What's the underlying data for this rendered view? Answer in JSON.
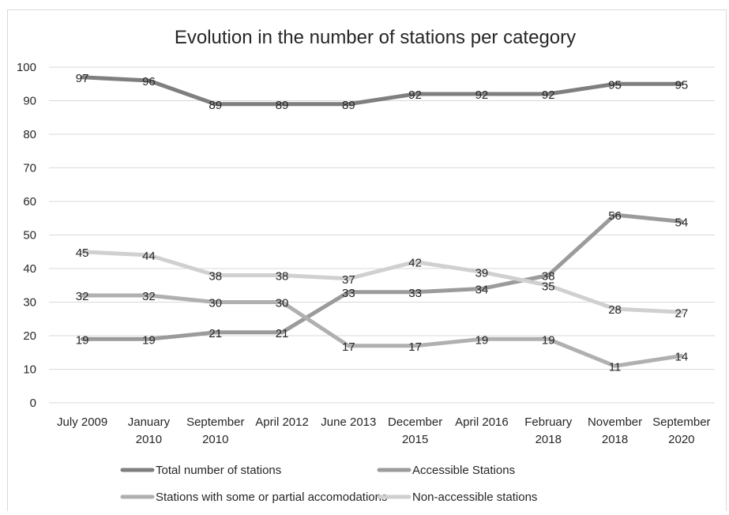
{
  "chart_data": {
    "type": "line",
    "title": "Evolution in the number of stations per category",
    "xlabel": "",
    "ylabel": "",
    "ylim": [
      0,
      100
    ],
    "yticks": [
      "0",
      "10",
      "20",
      "30",
      "40",
      "50",
      "60",
      "70",
      "80",
      "90",
      "100"
    ],
    "grid": true,
    "legend_position": "bottom",
    "categories": [
      [
        "July 2009"
      ],
      [
        "January",
        "2010"
      ],
      [
        "September",
        "2010"
      ],
      [
        "April 2012"
      ],
      [
        "June 2013"
      ],
      [
        "December",
        "2015"
      ],
      [
        "April 2016"
      ],
      [
        "February",
        "2018"
      ],
      [
        "November",
        "2018"
      ],
      [
        "September",
        "2020"
      ]
    ],
    "series": [
      {
        "name": "Total number of stations",
        "color": "#7f7f7f",
        "values": [
          97,
          96,
          89,
          89,
          89,
          92,
          92,
          92,
          95,
          95
        ]
      },
      {
        "name": "Accessible Stations",
        "color": "#9b9b9b",
        "values": [
          19,
          19,
          21,
          21,
          33,
          33,
          34,
          38,
          56,
          54
        ]
      },
      {
        "name": "Stations with some or partial accomodations",
        "color": "#b0b0b0",
        "values": [
          32,
          32,
          30,
          30,
          17,
          17,
          19,
          19,
          11,
          14
        ]
      },
      {
        "name": "Non-accessible stations",
        "color": "#d0d0d0",
        "values": [
          45,
          44,
          38,
          38,
          37,
          42,
          39,
          35,
          28,
          27
        ]
      }
    ],
    "colors": {
      "grid": "#d9d9d9",
      "text": "#262626",
      "border": "#d9d9d9"
    }
  }
}
